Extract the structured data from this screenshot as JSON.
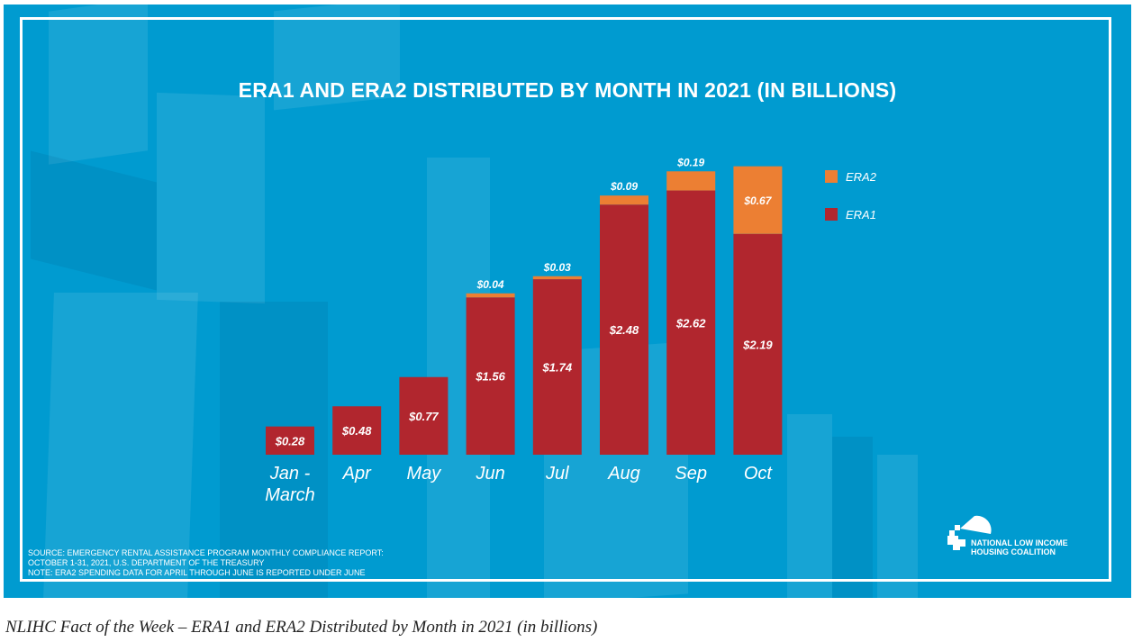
{
  "caption": "NLIHC Fact of the Week – ERA1 and ERA2 Distributed by Month in 2021 (in billions)",
  "source_lines": [
    "SOURCE: EMERGENCY RENTAL ASSISTANCE PROGRAM MONTHLY COMPLIANCE REPORT:",
    "OCTOBER 1-31, 2021, U.S. DEPARTMENT OF THE TREASURY",
    "NOTE: ERA2 SPENDING DATA FOR APRIL THROUGH JUNE IS REPORTED UNDER JUNE"
  ],
  "logo": {
    "line1": "NATIONAL LOW INCOME",
    "line2": "HOUSING COALITION"
  },
  "colors": {
    "background": "#009bd0",
    "era1": "#b1262e",
    "era2": "#ec7f33",
    "text": "#ffffff"
  },
  "chart_data": {
    "type": "bar",
    "stacked": true,
    "title": "ERA1 AND ERA2 DISTRIBUTED BY MONTH IN 2021 (IN BILLIONS)",
    "xlabel": "",
    "ylabel": "",
    "ylim": [
      0,
      2.9
    ],
    "grid": false,
    "legend_position": "right",
    "categories": [
      [
        "Jan -",
        "March"
      ],
      [
        "Apr"
      ],
      [
        "May"
      ],
      [
        "Jun"
      ],
      [
        "Jul"
      ],
      [
        "Aug"
      ],
      [
        "Sep"
      ],
      [
        "Oct"
      ]
    ],
    "series": [
      {
        "name": "ERA1",
        "color": "#b1262e",
        "values": [
          0.28,
          0.48,
          0.77,
          1.56,
          1.74,
          2.48,
          2.62,
          2.19
        ],
        "labels": [
          "$0.28",
          "$0.48",
          "$0.77",
          "$1.56",
          "$1.74",
          "$2.48",
          "$2.62",
          "$2.19"
        ]
      },
      {
        "name": "ERA2",
        "color": "#ec7f33",
        "values": [
          0,
          0,
          0,
          0.04,
          0.03,
          0.09,
          0.19,
          0.67
        ],
        "labels": [
          "",
          "",
          "",
          "$0.04",
          "$0.03",
          "$0.09",
          "$0.19",
          "$0.67"
        ]
      }
    ],
    "legend": [
      "ERA2",
      "ERA1"
    ]
  }
}
